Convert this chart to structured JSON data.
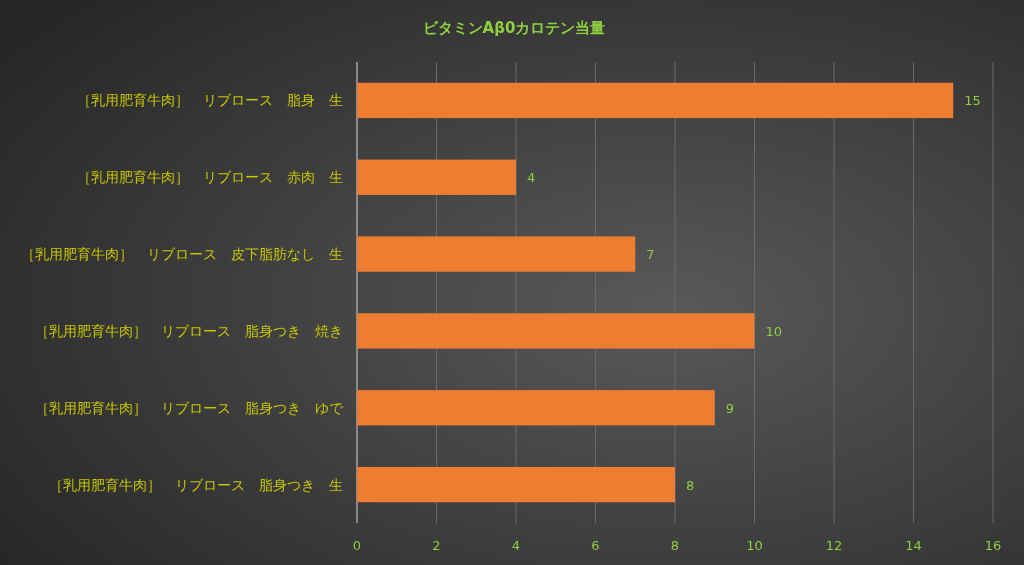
{
  "chart_data": {
    "type": "bar",
    "orientation": "horizontal",
    "title": "ビタミンAβ0カロテン当量",
    "categories": [
      "［乳用肥育牛肉］　リブロース　脂身　生",
      "［乳用肥育牛肉］　リブロース　赤肉　生",
      "［乳用肥育牛肉］　リブロース　皮下脂肪なし　生",
      "［乳用肥育牛肉］　リブロース　脂身つき　焼き",
      "［乳用肥育牛肉］　リブロース　脂身つき　ゆで",
      "［乳用肥育牛肉］　リブロース　脂身つき　生"
    ],
    "values": [
      15,
      4,
      7,
      10,
      9,
      8
    ],
    "color": "#ed7d31",
    "xlim": [
      0,
      16
    ],
    "xticks": [
      0,
      2,
      4,
      6,
      8,
      10,
      12,
      14,
      16
    ],
    "grid": "x",
    "data_labels": true
  }
}
